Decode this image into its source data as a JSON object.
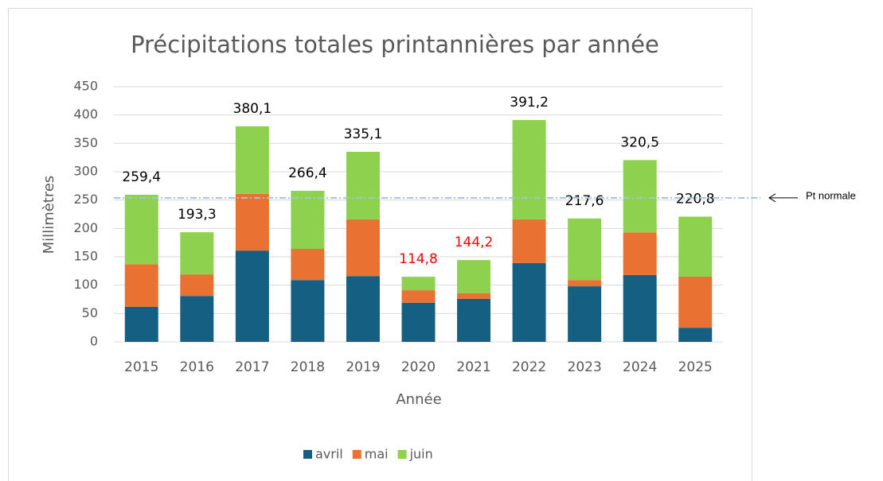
{
  "chart_data": {
    "type": "stacked_bar",
    "title": "Précipitations totales printannières par année",
    "x_label": "Année",
    "y_label": "Millimètres",
    "categories": [
      "2015",
      "2016",
      "2017",
      "2018",
      "2019",
      "2020",
      "2021",
      "2022",
      "2023",
      "2024",
      "2025"
    ],
    "series": [
      {
        "name": "avril",
        "color": "#156082",
        "values": [
          62,
          81,
          161,
          109,
          116,
          69,
          76,
          139,
          98,
          118,
          25
        ]
      },
      {
        "name": "mai",
        "color": "#e97132",
        "values": [
          75,
          38,
          100,
          55,
          100,
          22,
          10,
          77,
          11,
          75,
          90
        ]
      },
      {
        "name": "juin",
        "color": "#8ed14f",
        "values": [
          122.4,
          74.3,
          119.1,
          102.4,
          119.1,
          23.8,
          58.2,
          175.2,
          108.6,
          127.5,
          105.8
        ]
      }
    ],
    "totals": [
      259.4,
      193.3,
      380.1,
      266.4,
      335.1,
      114.8,
      144.2,
      391.2,
      217.6,
      320.5,
      220.8
    ],
    "total_labels": [
      "259,4",
      "193,3",
      "380,1",
      "266,4",
      "335,1",
      "114,8",
      "144,2",
      "391,2",
      "217,6",
      "320,5",
      "220,8"
    ],
    "total_label_colors": [
      "#000000",
      "#000000",
      "#000000",
      "#000000",
      "#000000",
      "#ff0000",
      "#ff0000",
      "#000000",
      "#000000",
      "#000000",
      "#000000"
    ],
    "reference_line": {
      "label": "Pt normale",
      "value": 254,
      "color": "#9dc3e6"
    },
    "ylim": [
      0,
      450
    ],
    "yticks": [
      0,
      50,
      100,
      150,
      200,
      250,
      300,
      350,
      400,
      450
    ],
    "grid": true,
    "legend": "bottom"
  }
}
